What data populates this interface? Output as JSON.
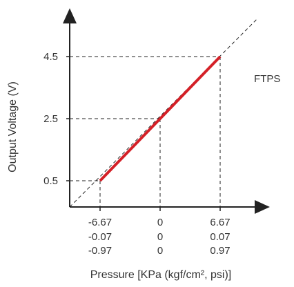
{
  "chart_data": {
    "type": "line",
    "title": "",
    "annotation": "FTPS",
    "xlabel": "Pressure [KPa (kgf/cm², psi)]",
    "ylabel": "Output Voltage (V)",
    "x_unit_rows": [
      [
        "-6.67",
        "0",
        "6.67"
      ],
      [
        "-0.07",
        "0",
        "0.07"
      ],
      [
        "-0.97",
        "0",
        "0.97"
      ]
    ],
    "x_ticks": [
      -6.67,
      0,
      6.67
    ],
    "y_ticks": [
      0.5,
      2.5,
      4.5
    ],
    "y_tick_labels": [
      "0.5",
      "2.5",
      "4.5"
    ],
    "grid": false,
    "series": [
      {
        "color": "#d42027",
        "x": [
          -6.67,
          6.67
        ],
        "y": [
          0.5,
          4.5
        ]
      }
    ],
    "colors": {
      "line": "#d42027",
      "axis": "#222222",
      "guide": "#222222"
    }
  }
}
